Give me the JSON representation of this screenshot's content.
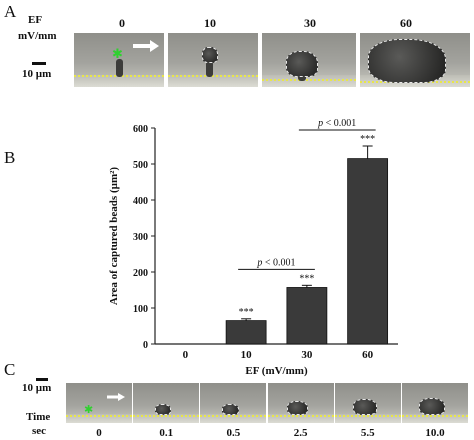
{
  "panel_a": {
    "label": "A",
    "ef_label": "EF",
    "unit_label": "mV/mm",
    "scale_label": "10 µm",
    "columns": [
      "0",
      "10",
      "30",
      "60"
    ],
    "bead_area_fraction": [
      0.03,
      0.1,
      0.35,
      0.75
    ]
  },
  "panel_b": {
    "label": "B"
  },
  "panel_c": {
    "label": "C",
    "scale_label": "10 µm",
    "time_label": "Time",
    "unit_label": "sec",
    "times": [
      "0",
      "0.1",
      "0.5",
      "2.5",
      "5.5",
      "10.0"
    ],
    "bead_area_fraction": [
      0.05,
      0.25,
      0.25,
      0.45,
      0.55,
      0.65
    ]
  },
  "chart_data": {
    "type": "bar",
    "categories": [
      "0",
      "10",
      "30",
      "60"
    ],
    "values": [
      0,
      65,
      157,
      515
    ],
    "errors": [
      0,
      5,
      6,
      35
    ],
    "significance": [
      "",
      "***",
      "***",
      "***"
    ],
    "xlabel": "EF (mV/mm)",
    "ylabel": "Area of captured beads (µm²)",
    "ylim": [
      0,
      600
    ],
    "yticks": [
      "0",
      "100",
      "200",
      "300",
      "400",
      "500",
      "600"
    ],
    "grid": false,
    "bar_color": "#3a3a3a",
    "annotations": [
      {
        "text_p": "p",
        "text_rest": " < 0.001",
        "from_category": "10",
        "to_category": "30"
      },
      {
        "text_p": "p",
        "text_rest": " < 0.001",
        "from_category": "30",
        "to_category": "60"
      }
    ]
  }
}
